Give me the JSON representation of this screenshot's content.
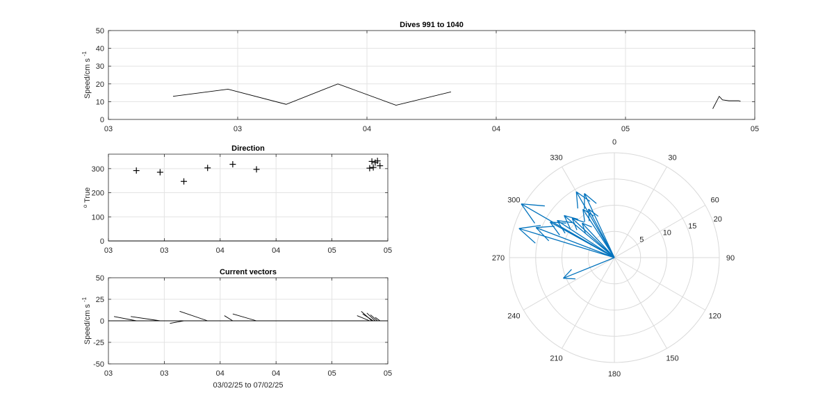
{
  "chart_data": [
    {
      "id": "speed",
      "type": "line",
      "title": "Dives 991 to 1040",
      "ylabel": "Speed/cm s",
      "ylabel_sup": "-1",
      "xlabel": "",
      "xlim": [
        0,
        100
      ],
      "ylim": [
        0,
        50
      ],
      "yticks": [
        0,
        10,
        20,
        30,
        40,
        50
      ],
      "xticks": [
        {
          "x": 0,
          "label": "03"
        },
        {
          "x": 20,
          "label": "03"
        },
        {
          "x": 40,
          "label": "04"
        },
        {
          "x": 60,
          "label": "04"
        },
        {
          "x": 80,
          "label": "05"
        },
        {
          "x": 100,
          "label": "05"
        }
      ],
      "grid": true,
      "series": [
        {
          "x": [
            10,
            18.5,
            27.5,
            35.5,
            44.5,
            53
          ],
          "y": [
            13,
            17,
            8.5,
            20,
            8,
            15.5
          ],
          "color": "#000000"
        },
        {
          "x": [
            93.5,
            94.5,
            95,
            96,
            97.5,
            97.8
          ],
          "y": [
            6,
            13,
            11,
            10.5,
            10.5,
            10.2
          ],
          "color": "#000000"
        }
      ]
    },
    {
      "id": "direction",
      "type": "scatter",
      "title": "Direction",
      "ylabel": "True",
      "ylabel_sup": "o",
      "xlabel": "",
      "xlim": [
        0,
        100
      ],
      "ylim": [
        0,
        360
      ],
      "yticks": [
        0,
        100,
        200,
        300
      ],
      "xticks": [
        {
          "x": 0,
          "label": "03"
        },
        {
          "x": 20,
          "label": "03"
        },
        {
          "x": 40,
          "label": "04"
        },
        {
          "x": 60,
          "label": "04"
        },
        {
          "x": 80,
          "label": "05"
        },
        {
          "x": 100,
          "label": "05"
        }
      ],
      "grid": true,
      "marker": "+",
      "points": [
        {
          "x": 10,
          "y": 292
        },
        {
          "x": 18.5,
          "y": 285
        },
        {
          "x": 27,
          "y": 247
        },
        {
          "x": 35.5,
          "y": 303
        },
        {
          "x": 44.5,
          "y": 318
        },
        {
          "x": 53,
          "y": 297
        },
        {
          "x": 93.5,
          "y": 302
        },
        {
          "x": 94.3,
          "y": 330
        },
        {
          "x": 94.8,
          "y": 305
        },
        {
          "x": 95.5,
          "y": 325
        },
        {
          "x": 96.3,
          "y": 332
        },
        {
          "x": 97.2,
          "y": 312
        }
      ]
    },
    {
      "id": "vectors",
      "type": "line",
      "title": "Current vectors",
      "ylabel": "Speed/cm s",
      "ylabel_sup": "-1",
      "xlabel": "03/02/25 to 07/02/25",
      "xlim": [
        0,
        100
      ],
      "ylim": [
        -50,
        50
      ],
      "yticks": [
        -50,
        -25,
        0,
        25,
        50
      ],
      "xticks": [
        {
          "x": 0,
          "label": "03"
        },
        {
          "x": 20,
          "label": "03"
        },
        {
          "x": 40,
          "label": "04"
        },
        {
          "x": 60,
          "label": "04"
        },
        {
          "x": 80,
          "label": "05"
        },
        {
          "x": 100,
          "label": "05"
        }
      ],
      "grid": true,
      "baseline": 0,
      "segments": [
        {
          "x0": 2,
          "y0": 5,
          "x1": 10,
          "y1": 0
        },
        {
          "x0": 8,
          "y0": 5,
          "x1": 18.5,
          "y1": 0
        },
        {
          "x0": 22,
          "y0": -3,
          "x1": 27,
          "y1": 0
        },
        {
          "x0": 25.5,
          "y0": 11,
          "x1": 35.5,
          "y1": 0
        },
        {
          "x0": 41.5,
          "y0": 6,
          "x1": 44.5,
          "y1": 0
        },
        {
          "x0": 44.5,
          "y0": 8,
          "x1": 53,
          "y1": 0
        },
        {
          "x0": 89,
          "y0": 6,
          "x1": 93.5,
          "y1": 0
        },
        {
          "x0": 90.5,
          "y0": 11,
          "x1": 94.3,
          "y1": 0
        },
        {
          "x0": 91,
          "y0": 8,
          "x1": 94.8,
          "y1": 0
        },
        {
          "x0": 92.5,
          "y0": 9,
          "x1": 95.5,
          "y1": 0
        },
        {
          "x0": 93.8,
          "y0": 7,
          "x1": 96.3,
          "y1": 0
        },
        {
          "x0": 95.5,
          "y0": 4,
          "x1": 97.2,
          "y1": 0
        }
      ]
    },
    {
      "id": "polar",
      "type": "scatter",
      "subtype": "compass",
      "title": "",
      "rlim": [
        0,
        20
      ],
      "rticks": [
        5,
        10,
        15,
        20
      ],
      "theta_ticks": [
        0,
        30,
        60,
        90,
        120,
        150,
        180,
        210,
        240,
        270,
        300,
        330
      ],
      "theta_direction": "clockwise",
      "theta_zero": "top",
      "color": "#0072BD",
      "grid": true,
      "vectors": [
        {
          "dir": 300,
          "speed": 20.5
        },
        {
          "dir": 287,
          "speed": 19
        },
        {
          "dir": 291,
          "speed": 16
        },
        {
          "dir": 299,
          "speed": 14
        },
        {
          "dir": 303,
          "speed": 13
        },
        {
          "dir": 310,
          "speed": 12.5
        },
        {
          "dir": 313,
          "speed": 11
        },
        {
          "dir": 330,
          "speed": 14.5
        },
        {
          "dir": 327,
          "speed": 11
        },
        {
          "dir": 332,
          "speed": 10.5
        },
        {
          "dir": 335,
          "speed": 13.5
        },
        {
          "dir": 317,
          "speed": 9
        },
        {
          "dir": 248,
          "speed": 10.5
        }
      ]
    }
  ]
}
